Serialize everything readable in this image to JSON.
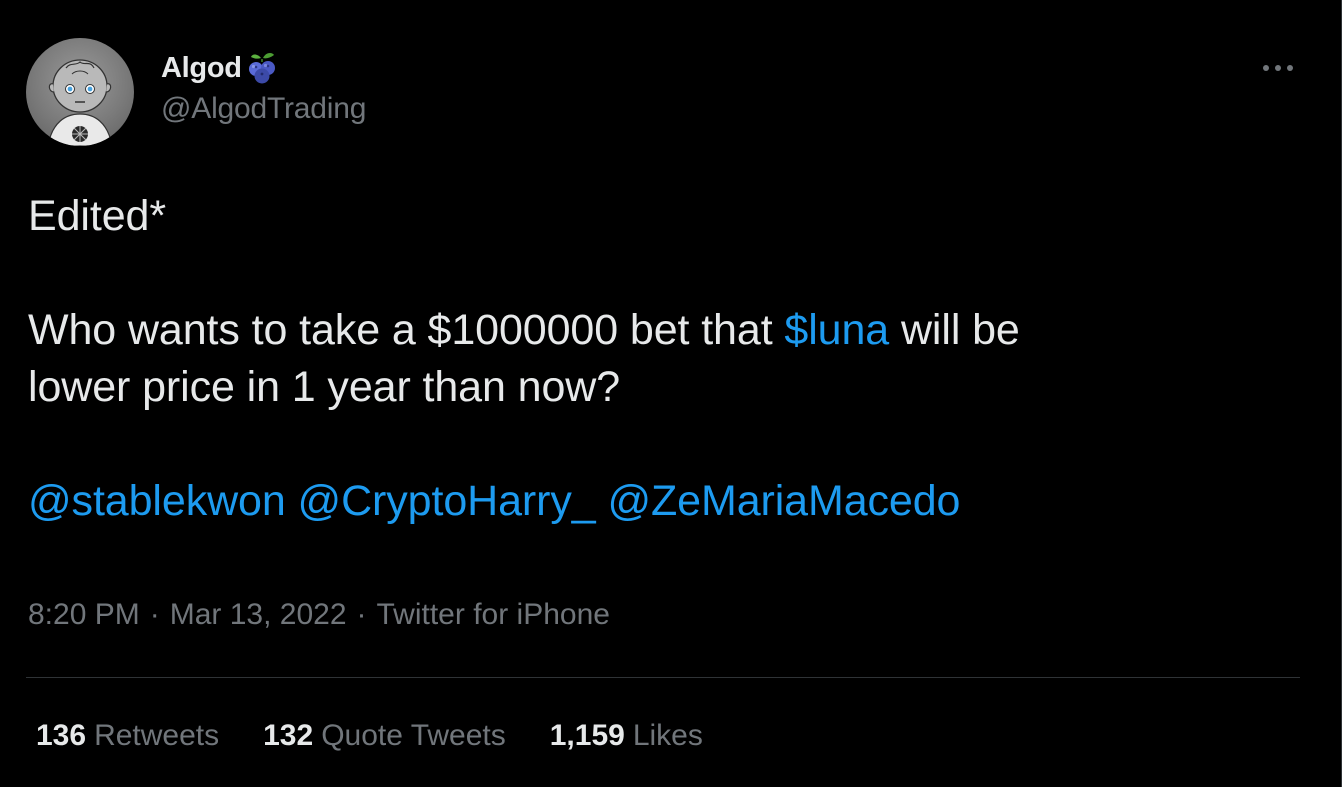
{
  "author": {
    "display_name": "Algod",
    "handle": "@AlgodTrading",
    "badge_icon": "blueberry-icon"
  },
  "menu": {
    "icon": "more-horizontal-icon"
  },
  "tweet": {
    "line1": "Edited*",
    "line2_before": "Who wants to take a $1000000 bet that ",
    "cashtag": "$luna",
    "line2_after": " will be",
    "line3": "lower price in 1 year than now?",
    "mentions": [
      "@stablekwon",
      "@CryptoHarry_",
      "@ZeMariaMacedo"
    ]
  },
  "meta": {
    "time": "8:20 PM",
    "separator": "·",
    "date": "Mar 13, 2022",
    "source": "Twitter for iPhone"
  },
  "stats": [
    {
      "count": "136",
      "label": "Retweets"
    },
    {
      "count": "132",
      "label": "Quote Tweets"
    },
    {
      "count": "1,159",
      "label": "Likes"
    }
  ],
  "colors": {
    "background": "#000000",
    "text": "#e7e9ea",
    "secondary": "#71767b",
    "link": "#1d9bf0",
    "divider": "#2f3336"
  }
}
